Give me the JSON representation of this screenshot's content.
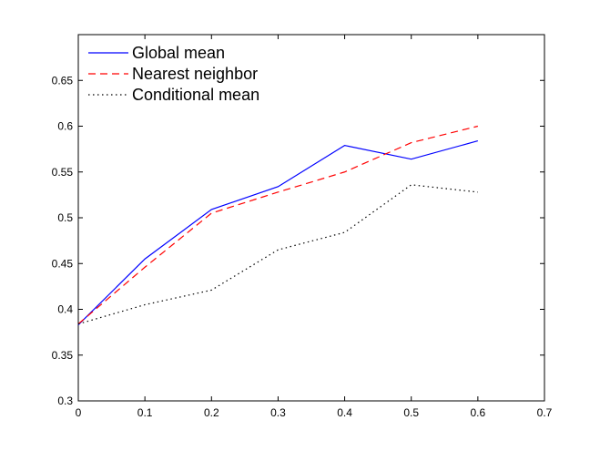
{
  "chart_data": {
    "type": "line",
    "title": "",
    "xlabel": "",
    "ylabel": "",
    "xlim": [
      0,
      0.7
    ],
    "ylim": [
      0.3,
      0.7
    ],
    "xticks": [
      0,
      0.1,
      0.2,
      0.3,
      0.4,
      0.5,
      0.6,
      0.7
    ],
    "xtick_labels": [
      "0",
      "0.1",
      "0.2",
      "0.3",
      "0.4",
      "0.5",
      "0.6",
      "0.7"
    ],
    "yticks": [
      0.3,
      0.35,
      0.4,
      0.45,
      0.5,
      0.55,
      0.6,
      0.65
    ],
    "ytick_labels": [
      "0.3",
      "0.35",
      "0.4",
      "0.45",
      "0.5",
      "0.55",
      "0.6",
      "0.65"
    ],
    "grid": false,
    "legend_position": "top-left",
    "series": [
      {
        "name": "Global mean",
        "color": "#0000ff",
        "style": "solid",
        "x": [
          0,
          0.1,
          0.2,
          0.3,
          0.4,
          0.5,
          0.6
        ],
        "y": [
          0.383,
          0.455,
          0.509,
          0.534,
          0.579,
          0.564,
          0.584
        ]
      },
      {
        "name": "Nearest neighbor",
        "color": "#ff0000",
        "style": "dashed",
        "x": [
          0,
          0.1,
          0.2,
          0.3,
          0.4,
          0.5,
          0.6
        ],
        "y": [
          0.384,
          0.446,
          0.505,
          0.528,
          0.55,
          0.582,
          0.6
        ]
      },
      {
        "name": "Conditional mean",
        "color": "#000000",
        "style": "dotted",
        "x": [
          0,
          0.1,
          0.2,
          0.3,
          0.4,
          0.5,
          0.6
        ],
        "y": [
          0.384,
          0.405,
          0.421,
          0.465,
          0.484,
          0.536,
          0.528
        ]
      }
    ]
  }
}
